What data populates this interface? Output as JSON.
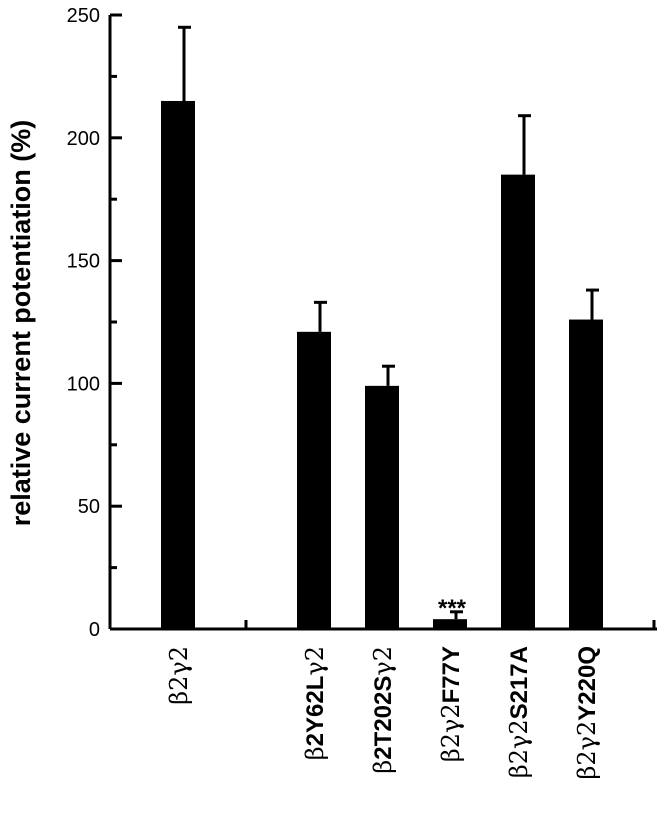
{
  "chart_data": {
    "type": "bar",
    "title": "",
    "xlabel": "",
    "ylabel": "relative current potentiation (%)",
    "ylim": [
      0,
      250
    ],
    "yticks": [
      "0",
      "50",
      "100",
      "150",
      "200",
      "250"
    ],
    "grid": false,
    "categories": [
      "β2γ2",
      "β2Y62Lγ2",
      "β2T202Sγ2",
      "β2γ2F77Y",
      "β2γ2S217A",
      "β2γ2Y220Q"
    ],
    "category_parts": [
      [
        {
          "t": "β",
          "g": true
        },
        {
          "t": "2",
          "g": true
        },
        {
          "t": "γ",
          "g": true
        },
        {
          "t": "2",
          "g": true
        }
      ],
      [
        {
          "t": "β",
          "g": true
        },
        {
          "t": "2Y62L",
          "g": false
        },
        {
          "t": "γ",
          "g": true
        },
        {
          "t": "2",
          "g": true
        }
      ],
      [
        {
          "t": "β",
          "g": true
        },
        {
          "t": "2T202S",
          "g": false
        },
        {
          "t": "γ",
          "g": true
        },
        {
          "t": "2",
          "g": true
        }
      ],
      [
        {
          "t": "β",
          "g": true
        },
        {
          "t": "2",
          "g": true
        },
        {
          "t": "γ",
          "g": true
        },
        {
          "t": "2",
          "g": true
        },
        {
          "t": "F77Y",
          "g": false
        }
      ],
      [
        {
          "t": "β",
          "g": true
        },
        {
          "t": "2",
          "g": true
        },
        {
          "t": "γ",
          "g": true
        },
        {
          "t": "2",
          "g": true
        },
        {
          "t": "S217A",
          "g": false
        }
      ],
      [
        {
          "t": "β",
          "g": true
        },
        {
          "t": "2",
          "g": true
        },
        {
          "t": "γ",
          "g": true
        },
        {
          "t": "2",
          "g": true
        },
        {
          "t": "Y220Q",
          "g": false
        }
      ]
    ],
    "slots": [
      0,
      2,
      3,
      4,
      5,
      6
    ],
    "values": [
      215,
      121,
      99,
      4,
      185,
      126
    ],
    "errors": [
      30,
      12,
      8,
      3,
      24,
      12
    ],
    "annotations": [
      {
        "index": 3,
        "text": "***"
      }
    ],
    "bar_color": "#000000"
  }
}
